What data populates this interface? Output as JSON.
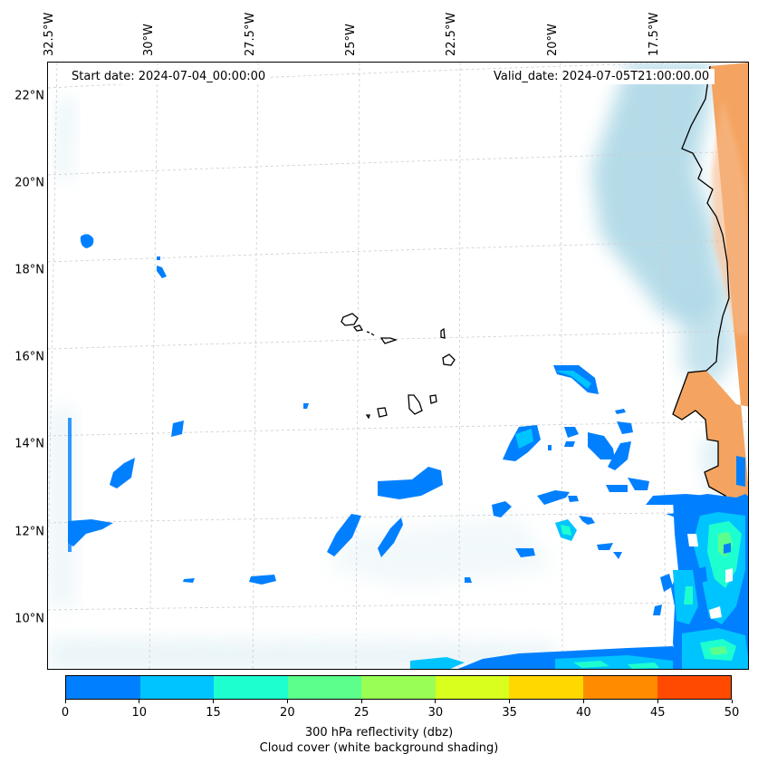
{
  "header": {
    "start_date": "Start date: 2024-07-04_00:00:00",
    "valid_date": "Valid_date: 2024-07-05T21:00:00.00"
  },
  "longitude_labels": [
    "32.5°W",
    "30°W",
    "27.5°W",
    "25°W",
    "22.5°W",
    "20°W",
    "17.5°W"
  ],
  "latitude_labels": [
    "22°N",
    "20°N",
    "18°N",
    "16°N",
    "14°N",
    "12°N",
    "10°N"
  ],
  "colorbar": {
    "ticks": [
      "0",
      "10",
      "15",
      "20",
      "25",
      "30",
      "35",
      "40",
      "45",
      "50"
    ],
    "colors": [
      "#0080ff",
      "#00c4ff",
      "#1effd0",
      "#5dff8c",
      "#9aff55",
      "#d8ff1e",
      "#ffd800",
      "#ff8c00",
      "#ff4a00"
    ],
    "label_line1": "300 hPa reflectivity (dbz)",
    "label_line2": "Cloud cover (white background shading)"
  },
  "colors": {
    "land": "#f4a460",
    "cloud": "#add8e6",
    "coastline": "#000000",
    "gridline": "#cccccc"
  }
}
